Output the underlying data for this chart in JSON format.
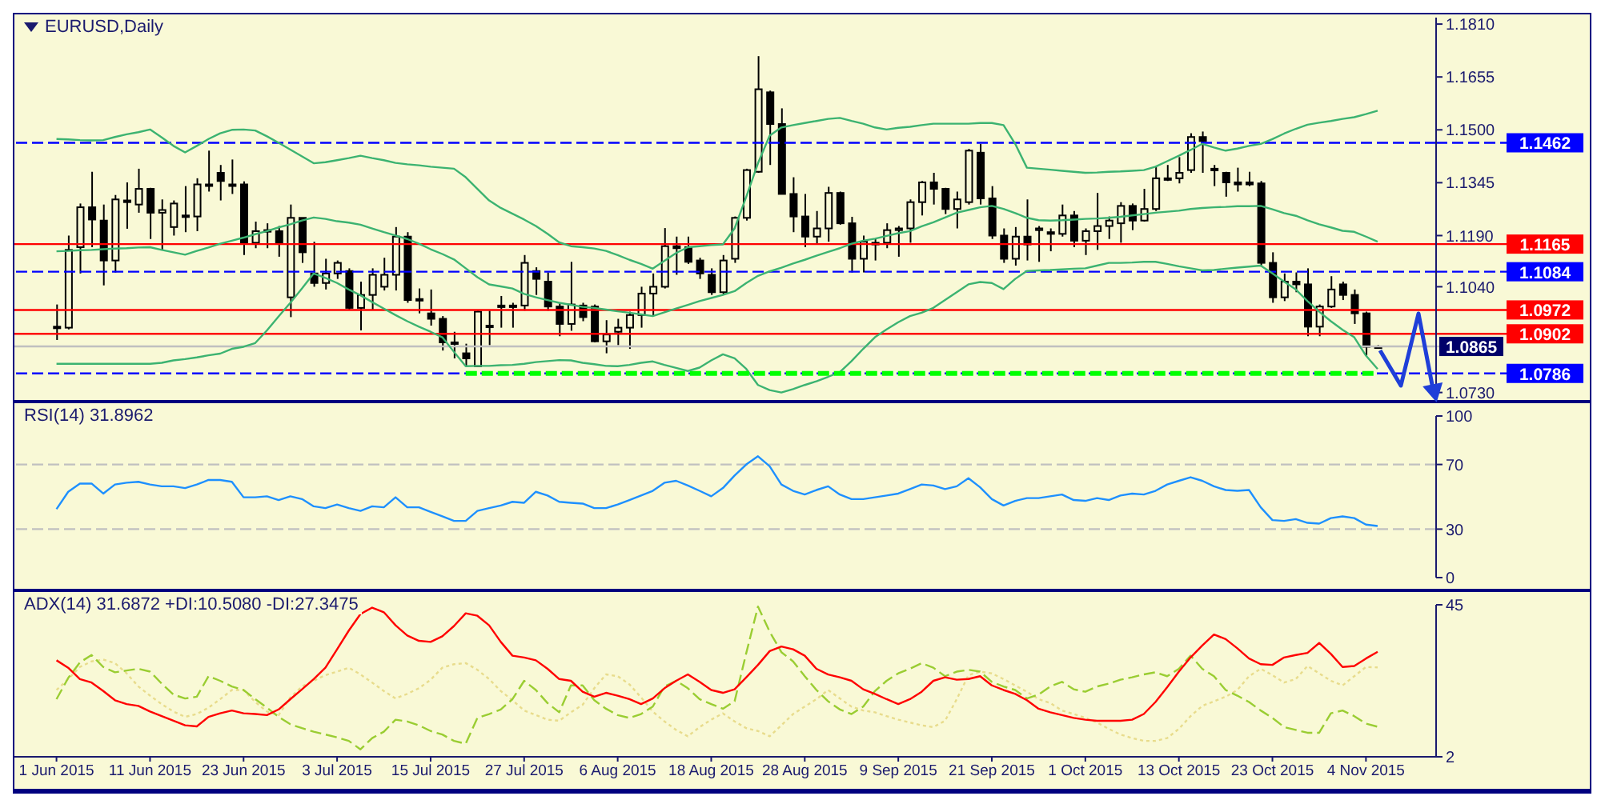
{
  "chart_data": [
    {
      "type": "candlestick",
      "title": "EURUSD,Daily",
      "color": "#000000",
      "marker": "none",
      "tick_labels": "y",
      "ohlc": [
        [
          1.0923,
          1.0988,
          1.0884,
          1.0923
        ],
        [
          1.092,
          1.119,
          1.0915,
          1.1148
        ],
        [
          1.1156,
          1.1284,
          1.1079,
          1.1273
        ],
        [
          1.1273,
          1.1377,
          1.1156,
          1.1237
        ],
        [
          1.1234,
          1.1281,
          1.1044,
          1.1117
        ],
        [
          1.1117,
          1.1309,
          1.1082,
          1.1296
        ],
        [
          1.1293,
          1.1346,
          1.121,
          1.1288
        ],
        [
          1.1281,
          1.1386,
          1.1257,
          1.1327
        ],
        [
          1.1327,
          1.133,
          1.118,
          1.1257
        ],
        [
          1.1257,
          1.1296,
          1.1148,
          1.1265
        ],
        [
          1.1215,
          1.1293,
          1.119,
          1.1284
        ],
        [
          1.1249,
          1.1335,
          1.12,
          1.1246
        ],
        [
          1.1246,
          1.1358,
          1.1203,
          1.134
        ],
        [
          1.134,
          1.1439,
          1.1319,
          1.134
        ],
        [
          1.1374,
          1.1397,
          1.1293,
          1.135
        ],
        [
          1.134,
          1.1413,
          1.1312,
          1.134
        ],
        [
          1.134,
          1.1349,
          1.1133,
          1.1169
        ],
        [
          1.1169,
          1.1231,
          1.1153,
          1.1203
        ],
        [
          1.1203,
          1.1226,
          1.1153,
          1.1206
        ],
        [
          1.1203,
          1.1218,
          1.1128,
          1.1169
        ],
        [
          1.1009,
          1.1281,
          1.0951,
          1.1242
        ],
        [
          1.1242,
          1.1242,
          1.111,
          1.1141
        ],
        [
          1.1079,
          1.1172,
          1.104,
          1.1051
        ],
        [
          1.1051,
          1.1122,
          1.1032,
          1.1079
        ],
        [
          1.1079,
          1.1117,
          1.1063,
          1.111
        ],
        [
          1.1086,
          1.1094,
          1.0973,
          1.0978
        ],
        [
          1.0978,
          1.1055,
          1.0912,
          1.1016
        ],
        [
          1.1016,
          1.1094,
          1.0973,
          1.1075
        ],
        [
          1.104,
          1.1125,
          1.1029,
          1.1075
        ],
        [
          1.1075,
          1.1215,
          1.1029,
          1.1187
        ],
        [
          1.1187,
          1.12,
          1.0993,
          1.1001
        ],
        [
          1.1001,
          1.1035,
          1.0962,
          1.1004
        ],
        [
          1.0962,
          1.1032,
          1.0926,
          1.0946
        ],
        [
          1.0946,
          1.0954,
          1.0853,
          1.0877
        ],
        [
          1.0877,
          1.0908,
          1.083,
          1.0877
        ],
        [
          1.0845,
          1.0873,
          1.0807,
          1.083
        ],
        [
          1.0807,
          1.097,
          1.0807,
          1.0967
        ],
        [
          1.0926,
          1.097,
          1.0869,
          1.0926
        ],
        [
          1.0985,
          1.1013,
          1.092,
          1.0985
        ],
        [
          1.0985,
          1.0993,
          1.092,
          1.0985
        ],
        [
          1.0985,
          1.1133,
          1.097,
          1.111
        ],
        [
          1.1086,
          1.1097,
          1.1016,
          1.1063
        ],
        [
          1.1055,
          1.1082,
          1.097,
          1.0982
        ],
        [
          1.0982,
          1.0993,
          1.0895,
          1.0931
        ],
        [
          1.0931,
          1.1113,
          1.0911,
          1.0988
        ],
        [
          1.0985,
          1.0993,
          1.0939,
          1.0951
        ],
        [
          1.0982,
          1.0988,
          1.0877,
          1.088
        ],
        [
          1.088,
          1.0942,
          1.0845,
          1.09
        ],
        [
          1.0908,
          1.0946,
          1.0869,
          1.092
        ],
        [
          1.092,
          1.0967,
          1.0858,
          1.0957
        ],
        [
          1.0957,
          1.104,
          1.092,
          1.102
        ],
        [
          1.102,
          1.1079,
          1.0954,
          1.104
        ],
        [
          1.104,
          1.1212,
          1.1035,
          1.1159
        ],
        [
          1.1159,
          1.1187,
          1.1075,
          1.1153
        ],
        [
          1.1156,
          1.1187,
          1.1107,
          1.1113
        ],
        [
          1.1117,
          1.1125,
          1.1063,
          1.1079
        ],
        [
          1.1075,
          1.1094,
          1.1016,
          1.1024
        ],
        [
          1.1024,
          1.1133,
          1.1016,
          1.1117
        ],
        [
          1.1122,
          1.1246,
          1.111,
          1.1242
        ],
        [
          1.1242,
          1.1386,
          1.1234,
          1.1382
        ],
        [
          1.1377,
          1.1716,
          1.1374,
          1.1619
        ],
        [
          1.161,
          1.1615,
          1.1397,
          1.1517
        ],
        [
          1.1517,
          1.1563,
          1.1312,
          1.1312
        ],
        [
          1.1312,
          1.1361,
          1.12,
          1.1246
        ],
        [
          1.1246,
          1.1312,
          1.1156,
          1.1187
        ],
        [
          1.1187,
          1.1262,
          1.1164,
          1.1211
        ],
        [
          1.1211,
          1.1333,
          1.1172,
          1.1315
        ],
        [
          1.1315,
          1.1319,
          1.1222,
          1.1226
        ],
        [
          1.1226,
          1.1245,
          1.1082,
          1.1122
        ],
        [
          1.1122,
          1.119,
          1.1082,
          1.1172
        ],
        [
          1.1164,
          1.118,
          1.1117,
          1.1169
        ],
        [
          1.1169,
          1.1226,
          1.1153,
          1.1206
        ],
        [
          1.1206,
          1.1218,
          1.1128,
          1.1211
        ],
        [
          1.1211,
          1.1296,
          1.1169,
          1.1288
        ],
        [
          1.1288,
          1.135,
          1.1249,
          1.1346
        ],
        [
          1.1346,
          1.1374,
          1.1281,
          1.1327
        ],
        [
          1.1327,
          1.133,
          1.1253,
          1.1268
        ],
        [
          1.1268,
          1.1319,
          1.1211,
          1.1296
        ],
        [
          1.1288,
          1.1444,
          1.1281,
          1.1439
        ],
        [
          1.1433,
          1.1459,
          1.1281,
          1.1299
        ],
        [
          1.1299,
          1.1335,
          1.118,
          1.119
        ],
        [
          1.119,
          1.1211,
          1.111,
          1.1122
        ],
        [
          1.1122,
          1.1215,
          1.1102,
          1.1187
        ],
        [
          1.1187,
          1.1296,
          1.1117,
          1.1164
        ],
        [
          1.1206,
          1.1218,
          1.1113,
          1.1211
        ],
        [
          1.12,
          1.1211,
          1.1144,
          1.1195
        ],
        [
          1.1195,
          1.1281,
          1.1187,
          1.1249
        ],
        [
          1.1249,
          1.1262,
          1.1156,
          1.1175
        ],
        [
          1.1175,
          1.1211,
          1.1133,
          1.1203
        ],
        [
          1.1203,
          1.1315,
          1.1148,
          1.1218
        ],
        [
          1.1218,
          1.1246,
          1.118,
          1.1234
        ],
        [
          1.1226,
          1.1288,
          1.1169,
          1.1277
        ],
        [
          1.1277,
          1.1284,
          1.1206,
          1.1234
        ],
        [
          1.1234,
          1.1327,
          1.1231,
          1.1268
        ],
        [
          1.1268,
          1.1392,
          1.1262,
          1.1358
        ],
        [
          1.1358,
          1.1397,
          1.135,
          1.1358
        ],
        [
          1.1358,
          1.142,
          1.1343,
          1.1374
        ],
        [
          1.1382,
          1.149,
          1.1374,
          1.1479
        ],
        [
          1.1479,
          1.1495,
          1.1374,
          1.1467
        ],
        [
          1.1386,
          1.1397,
          1.1335,
          1.1382
        ],
        [
          1.1374,
          1.1377,
          1.1304,
          1.1346
        ],
        [
          1.1346,
          1.1389,
          1.1319,
          1.134
        ],
        [
          1.1346,
          1.1377,
          1.1335,
          1.134
        ],
        [
          1.1343,
          1.135,
          1.1102,
          1.111
        ],
        [
          1.111,
          1.1141,
          1.0993,
          1.1009
        ],
        [
          1.1009,
          1.1079,
          1.0998,
          1.1055
        ],
        [
          1.1055,
          1.1082,
          1.1024,
          1.1047
        ],
        [
          1.1047,
          1.1094,
          1.0895,
          1.0923
        ],
        [
          1.0923,
          1.0988,
          1.0895,
          1.0982
        ],
        [
          1.0982,
          1.1071,
          1.0978,
          1.1032
        ],
        [
          1.1047,
          1.1055,
          1.1001,
          1.1016
        ],
        [
          1.1016,
          1.1032,
          1.0931,
          1.0962
        ],
        [
          1.0962,
          1.0967,
          1.0838,
          1.0864
        ],
        [
          1.0864,
          1.0869,
          1.0858,
          1.0865
        ]
      ],
      "series": [
        {
          "type": "line",
          "color": "#3cb371",
          "values": [
            1.1473,
            1.1472,
            1.147,
            1.1469,
            1.147,
            1.1479,
            1.1487,
            1.1493,
            1.1501,
            1.1478,
            1.1453,
            1.1434,
            1.1453,
            1.1473,
            1.149,
            1.15,
            1.1501,
            1.1498,
            1.1481,
            1.1462,
            1.1442,
            1.1422,
            1.1402,
            1.1405,
            1.1411,
            1.1417,
            1.1424,
            1.1417,
            1.1411,
            1.1403,
            1.1399,
            1.1396,
            1.1392,
            1.1389,
            1.1386,
            1.1361,
            1.1327,
            1.1293,
            1.1271,
            1.1254,
            1.1237,
            1.1218,
            1.1195,
            1.117,
            1.1159,
            1.1156,
            1.1152,
            1.1145,
            1.1133,
            1.1119,
            1.1107,
            1.1093,
            1.1116,
            1.1139,
            1.1156,
            1.1159,
            1.1162,
            1.1164,
            1.1211,
            1.1304,
            1.1402,
            1.1483,
            1.1507,
            1.1514,
            1.152,
            1.1526,
            1.1532,
            1.1535,
            1.1526,
            1.1518,
            1.1507,
            1.1501,
            1.1506,
            1.1509,
            1.1514,
            1.1518,
            1.1518,
            1.1518,
            1.1518,
            1.152,
            1.152,
            1.1514,
            1.1459,
            1.1389,
            1.1386,
            1.1383,
            1.138,
            1.1377,
            1.1374,
            1.1375,
            1.1377,
            1.1378,
            1.138,
            1.1382,
            1.1392,
            1.1408,
            1.1424,
            1.1441,
            1.1459,
            1.1448,
            1.1439,
            1.1445,
            1.1453,
            1.1459,
            1.1473,
            1.1489,
            1.1503,
            1.1515,
            1.1521,
            1.1526,
            1.1532,
            1.1537,
            1.1546,
            1.1556
          ]
        },
        {
          "type": "line",
          "color": "#3cb371",
          "values": [
            1.1144,
            1.1145,
            1.1147,
            1.1148,
            1.115,
            1.1152,
            1.1153,
            1.1155,
            1.1156,
            1.1148,
            1.1141,
            1.1134,
            1.1145,
            1.1155,
            1.1166,
            1.1175,
            1.1184,
            1.1194,
            1.1203,
            1.1214,
            1.1223,
            1.1234,
            1.1243,
            1.1239,
            1.1232,
            1.1228,
            1.1222,
            1.1211,
            1.12,
            1.119,
            1.118,
            1.1166,
            1.115,
            1.1136,
            1.112,
            1.1094,
            1.1068,
            1.1047,
            1.1041,
            1.1035,
            1.1019,
            1.1009,
            1.1001,
            1.0993,
            1.0987,
            1.0981,
            1.0978,
            1.0973,
            1.0968,
            1.0964,
            1.0959,
            1.0954,
            1.0965,
            1.0976,
            1.0987,
            1.0998,
            1.1007,
            1.1016,
            1.1027,
            1.1051,
            1.1072,
            1.1085,
            1.1096,
            1.1108,
            1.1119,
            1.1131,
            1.1142,
            1.1153,
            1.1166,
            1.1175,
            1.1181,
            1.1189,
            1.1197,
            1.1203,
            1.1217,
            1.1229,
            1.1243,
            1.1257,
            1.1265,
            1.1273,
            1.1277,
            1.1268,
            1.1256,
            1.1242,
            1.1235,
            1.1234,
            1.1235,
            1.1237,
            1.1239,
            1.124,
            1.1242,
            1.1245,
            1.1249,
            1.1253,
            1.1257,
            1.126,
            1.1263,
            1.1268,
            1.1271,
            1.1273,
            1.1274,
            1.1276,
            1.1276,
            1.1277,
            1.1267,
            1.1256,
            1.1248,
            1.1235,
            1.1223,
            1.1214,
            1.1204,
            1.1201,
            1.1187,
            1.1172
          ]
        },
        {
          "type": "line",
          "color": "#3cb371",
          "values": [
            1.0814,
            1.0814,
            1.0814,
            1.0814,
            1.0814,
            1.0814,
            1.0814,
            1.0814,
            1.0814,
            1.0817,
            1.0824,
            1.0828,
            1.0833,
            1.0839,
            1.0844,
            1.0858,
            1.0864,
            1.0875,
            1.0912,
            1.0953,
            1.0993,
            1.1035,
            1.1079,
            1.1066,
            1.1051,
            1.1032,
            1.1015,
            1.0995,
            1.0976,
            1.0957,
            1.0939,
            1.0923,
            1.0908,
            1.0892,
            1.0849,
            1.0807,
            1.0808,
            1.0808,
            1.081,
            1.0811,
            1.0814,
            1.0819,
            1.0822,
            1.0825,
            1.0824,
            1.0817,
            1.0813,
            1.0808,
            1.0807,
            1.0811,
            1.0817,
            1.0821,
            1.0811,
            1.0802,
            1.0793,
            1.0803,
            1.0824,
            1.0842,
            1.083,
            1.0799,
            1.0752,
            1.0737,
            1.073,
            1.074,
            1.0752,
            1.0763,
            1.0776,
            1.079,
            1.0822,
            1.0858,
            1.0892,
            1.0915,
            1.0936,
            1.0954,
            1.0964,
            1.0978,
            1.1001,
            1.1024,
            1.1047,
            1.1054,
            1.1051,
            1.1033,
            1.1063,
            1.1086,
            1.1088,
            1.1089,
            1.1091,
            1.1093,
            1.1094,
            1.1102,
            1.111,
            1.111,
            1.1111,
            1.1113,
            1.1113,
            1.1107,
            1.11,
            1.1094,
            1.1088,
            1.1089,
            1.1093,
            1.1096,
            1.1099,
            1.1102,
            1.1079,
            1.1055,
            1.1032,
            1.0998,
            1.0967,
            1.0939,
            1.0914,
            1.0892,
            1.0838,
            1.0799
          ]
        },
        {
          "type": "line",
          "color": "#00ff00",
          "line_style": "dashed",
          "values": [
            null,
            null,
            null,
            null,
            null,
            null,
            null,
            null,
            null,
            null,
            null,
            null,
            null,
            null,
            null,
            null,
            null,
            null,
            null,
            null,
            null,
            null,
            null,
            null,
            null,
            null,
            null,
            null,
            null,
            null,
            null,
            null,
            null,
            null,
            null,
            1.0786,
            1.0786,
            1.0786,
            1.0786,
            1.0786,
            1.0786,
            1.0786,
            1.0786,
            1.0786,
            1.0786,
            1.0786,
            1.0786,
            1.0786,
            1.0786,
            1.0786,
            1.0786,
            1.0786,
            1.0786,
            1.0786,
            1.0786,
            1.0786,
            1.0786,
            1.0786,
            1.0786,
            1.0786,
            1.0786,
            1.0786,
            1.0786,
            1.0786,
            1.0786,
            1.0786,
            1.0786,
            1.0786,
            1.0786,
            1.0786,
            1.0786,
            1.0786,
            1.0786,
            1.0786,
            1.0786,
            1.0786,
            1.0786,
            1.0786,
            1.0786,
            1.0786,
            1.0786,
            1.0786,
            1.0786,
            1.0786,
            1.0786,
            1.0786,
            1.0786,
            1.0786,
            1.0786,
            1.0786,
            1.0786,
            1.0786,
            1.0786,
            1.0786,
            1.0786,
            1.0786,
            1.0786,
            1.0786,
            1.0786,
            1.0786,
            1.0786,
            1.0786,
            1.0786,
            1.0786,
            1.0786,
            1.0786,
            1.0786,
            1.0786,
            1.0786,
            1.0786,
            1.0786,
            1.0786,
            1.0786,
            1.0786
          ]
        }
      ],
      "ylim": [
        1.0708,
        1.1829
      ],
      "yticks": [
        {
          "value": 1.073,
          "label": "1.0730"
        },
        {
          "value": 1.104,
          "label": "1.1040"
        },
        {
          "value": 1.119,
          "label": "1.1190"
        },
        {
          "value": 1.1345,
          "label": "1.1345"
        },
        {
          "value": 1.15,
          "label": "1.1500"
        },
        {
          "value": 1.1655,
          "label": "1.1655"
        },
        {
          "value": 1.181,
          "label": "1.1810"
        }
      ],
      "ref_lines": [
        {
          "axis": "y",
          "value": 1.1462,
          "label": "1.1462",
          "color": "#0000ff",
          "line_style": "dashed"
        },
        {
          "axis": "y",
          "value": 1.1165,
          "label": "1.1165",
          "color": "#ff0000",
          "line_style": "solid"
        },
        {
          "axis": "y",
          "value": 1.1084,
          "label": "1.1084",
          "color": "#0000ff",
          "line_style": "dashed"
        },
        {
          "axis": "y",
          "value": 1.0972,
          "label": "1.0972",
          "color": "#ff0000",
          "line_style": "solid"
        },
        {
          "axis": "y",
          "value": 1.0902,
          "label": "1.0902",
          "color": "#ff0000",
          "line_style": "solid"
        },
        {
          "axis": "y",
          "value": 1.0865,
          "label": "1.0865",
          "color": "#c0c0c0",
          "line_style": "solid"
        },
        {
          "axis": "y",
          "value": 1.0786,
          "label": "1.0786",
          "color": "#0000ff",
          "line_style": "dashed"
        }
      ]
    },
    {
      "type": "line",
      "title": "RSI(14) 31.8962",
      "marker": "none",
      "tick_labels": "y",
      "series": [
        {
          "color": "#1e90ff",
          "values": [
            42.4,
            53.1,
            58.2,
            58.2,
            52.0,
            57.6,
            58.7,
            59.3,
            57.6,
            56.5,
            56.5,
            55.4,
            57.6,
            60.4,
            60.4,
            59.3,
            49.7,
            49.7,
            50.3,
            48.0,
            50.3,
            48.6,
            44.1,
            43.0,
            45.2,
            43.0,
            41.3,
            44.1,
            43.5,
            49.7,
            43.5,
            43.5,
            40.7,
            37.9,
            35.1,
            35.1,
            41.3,
            43.0,
            44.6,
            46.9,
            46.3,
            53.1,
            50.8,
            46.9,
            46.3,
            45.8,
            43.0,
            43.0,
            45.2,
            48.0,
            50.8,
            53.7,
            58.7,
            59.9,
            57.0,
            53.7,
            50.3,
            55.4,
            63.2,
            70.0,
            75.1,
            68.9,
            57.6,
            53.7,
            51.4,
            54.2,
            56.5,
            51.4,
            48.6,
            48.6,
            49.7,
            50.8,
            52.0,
            54.8,
            57.6,
            57.0,
            54.8,
            56.5,
            61.5,
            55.9,
            48.6,
            44.6,
            47.5,
            49.2,
            49.2,
            50.3,
            51.4,
            48.0,
            47.5,
            49.2,
            48.0,
            50.8,
            52.0,
            51.4,
            53.7,
            57.6,
            59.9,
            62.1,
            59.9,
            56.5,
            54.2,
            53.7,
            54.2,
            43.5,
            35.6,
            35.1,
            36.2,
            33.9,
            33.4,
            36.8,
            37.9,
            36.8,
            32.8,
            31.9
          ]
        }
      ],
      "ylim": [
        0,
        100
      ],
      "yticks": [
        0,
        30,
        70,
        100
      ],
      "ref_lines": [
        {
          "axis": "y",
          "value": 30,
          "color": "#c0c0c0",
          "line_style": "dashed"
        },
        {
          "axis": "y",
          "value": 70,
          "color": "#c0c0c0",
          "line_style": "dashed"
        }
      ]
    },
    {
      "type": "line",
      "title": "ADX(14) 31.6872 +DI:10.5080 -DI:27.3475",
      "marker": "none",
      "categories": [
        "1 Jun 2015",
        null,
        null,
        null,
        null,
        null,
        null,
        null,
        "11 Jun 2015",
        null,
        null,
        null,
        null,
        null,
        null,
        null,
        "23 Jun 2015",
        null,
        null,
        null,
        null,
        null,
        null,
        null,
        "3 Jul 2015",
        null,
        null,
        null,
        null,
        null,
        null,
        null,
        "15 Jul 2015",
        null,
        null,
        null,
        null,
        null,
        null,
        null,
        "27 Jul 2015",
        null,
        null,
        null,
        null,
        null,
        null,
        null,
        "6 Aug 2015",
        null,
        null,
        null,
        null,
        null,
        null,
        null,
        "18 Aug 2015",
        null,
        null,
        null,
        null,
        null,
        null,
        null,
        "28 Aug 2015",
        null,
        null,
        null,
        null,
        null,
        null,
        null,
        "9 Sep 2015",
        null,
        null,
        null,
        null,
        null,
        null,
        null,
        "21 Sep 2015",
        null,
        null,
        null,
        null,
        null,
        null,
        null,
        "1 Oct 2015",
        null,
        null,
        null,
        null,
        null,
        null,
        null,
        "13 Oct 2015",
        null,
        null,
        null,
        null,
        null,
        null,
        null,
        "23 Oct 2015",
        null,
        null,
        null,
        null,
        null,
        null,
        null,
        "4 Nov 2015",
        null
      ],
      "series": [
        {
          "color": "#e8dc8c",
          "line_style": "dotted",
          "values": [
            20.9,
            24.0,
            27.4,
            29.0,
            29.5,
            28.5,
            25.6,
            21.9,
            19.3,
            16.9,
            14.8,
            13.3,
            14.1,
            15.9,
            18.3,
            20.9,
            20.9,
            17.5,
            14.8,
            13.8,
            18.8,
            21.9,
            23.5,
            25.1,
            26.1,
            27.2,
            25.3,
            23.0,
            20.6,
            18.5,
            19.8,
            21.4,
            23.8,
            27.2,
            28.2,
            28.5,
            26.6,
            24.0,
            20.6,
            18.0,
            15.1,
            13.8,
            12.5,
            12.2,
            14.6,
            16.7,
            21.4,
            25.3,
            24.8,
            22.5,
            18.8,
            14.8,
            12.0,
            9.6,
            7.8,
            10.4,
            12.5,
            14.3,
            12.0,
            10.1,
            9.3,
            7.8,
            10.9,
            14.1,
            16.2,
            18.3,
            20.9,
            18.5,
            16.2,
            15.1,
            14.6,
            13.5,
            12.5,
            11.7,
            10.9,
            10.4,
            12.2,
            18.3,
            25.1,
            26.1,
            25.6,
            24.0,
            22.2,
            20.4,
            18.3,
            17.2,
            15.1,
            14.1,
            13.0,
            11.7,
            9.9,
            8.3,
            7.3,
            6.5,
            6.5,
            7.3,
            9.9,
            13.5,
            16.4,
            17.7,
            19.0,
            20.9,
            24.8,
            26.9,
            25.1,
            23.0,
            24.0,
            27.7,
            25.6,
            23.5,
            22.2,
            24.8,
            27.4,
            27.3
          ]
        },
        {
          "color": "#9acd32",
          "line_style": "dashed",
          "values": [
            18.3,
            24.3,
            28.7,
            30.8,
            27.4,
            25.9,
            26.4,
            26.9,
            26.1,
            22.7,
            19.6,
            18.5,
            19.0,
            24.8,
            23.5,
            21.9,
            20.9,
            18.3,
            15.9,
            13.3,
            11.2,
            10.1,
            9.1,
            8.3,
            7.5,
            6.5,
            4.1,
            7.3,
            9.1,
            12.5,
            12.0,
            10.9,
            9.3,
            8.3,
            6.5,
            5.7,
            13.0,
            14.1,
            15.4,
            18.3,
            23.5,
            20.9,
            17.2,
            14.6,
            22.2,
            22.2,
            18.0,
            15.6,
            13.8,
            13.0,
            14.1,
            16.2,
            21.9,
            23.5,
            21.4,
            18.3,
            16.9,
            15.6,
            17.7,
            31.4,
            44.5,
            37.4,
            31.6,
            29.0,
            24.8,
            20.9,
            17.7,
            15.4,
            14.1,
            16.2,
            20.6,
            23.5,
            25.6,
            26.9,
            28.5,
            27.2,
            24.8,
            26.1,
            26.6,
            26.1,
            23.2,
            21.9,
            20.9,
            18.5,
            19.6,
            21.9,
            23.2,
            21.1,
            20.4,
            21.9,
            22.7,
            23.8,
            24.5,
            25.3,
            25.9,
            24.8,
            26.9,
            30.6,
            26.9,
            24.8,
            20.9,
            19.3,
            17.5,
            15.1,
            13.0,
            10.4,
            9.6,
            8.8,
            8.8,
            14.3,
            15.1,
            13.5,
            11.4,
            10.5
          ]
        },
        {
          "color": "#ff0000",
          "line_style": "solid",
          "values": [
            29.3,
            27.2,
            24.0,
            23.0,
            20.6,
            18.0,
            16.9,
            16.4,
            14.8,
            13.5,
            12.2,
            10.9,
            10.6,
            13.3,
            14.3,
            15.1,
            14.3,
            14.1,
            13.8,
            15.4,
            18.3,
            21.1,
            24.0,
            27.2,
            32.4,
            37.7,
            42.4,
            44.2,
            42.9,
            39.2,
            36.3,
            34.8,
            34.5,
            36.1,
            39.0,
            42.6,
            41.9,
            39.2,
            34.5,
            30.6,
            30.1,
            29.3,
            26.9,
            24.0,
            23.5,
            20.4,
            19.0,
            20.1,
            19.3,
            18.3,
            16.9,
            18.5,
            21.4,
            23.5,
            25.3,
            23.2,
            20.9,
            20.1,
            21.1,
            24.5,
            28.0,
            31.9,
            33.2,
            32.4,
            30.6,
            26.9,
            25.3,
            24.5,
            23.5,
            21.1,
            19.8,
            18.3,
            16.9,
            18.3,
            20.4,
            23.5,
            24.5,
            23.8,
            24.0,
            24.8,
            22.2,
            20.9,
            19.8,
            18.0,
            15.6,
            14.6,
            13.8,
            13.0,
            12.5,
            12.2,
            12.2,
            12.2,
            12.5,
            14.1,
            17.5,
            21.7,
            26.1,
            30.1,
            33.5,
            36.6,
            35.3,
            32.7,
            29.8,
            28.2,
            28.0,
            30.1,
            30.8,
            31.4,
            34.2,
            31.1,
            27.4,
            27.7,
            29.8,
            31.7
          ]
        }
      ],
      "ylim": [
        2,
        45
      ],
      "yticks": [
        2,
        45
      ]
    }
  ]
}
